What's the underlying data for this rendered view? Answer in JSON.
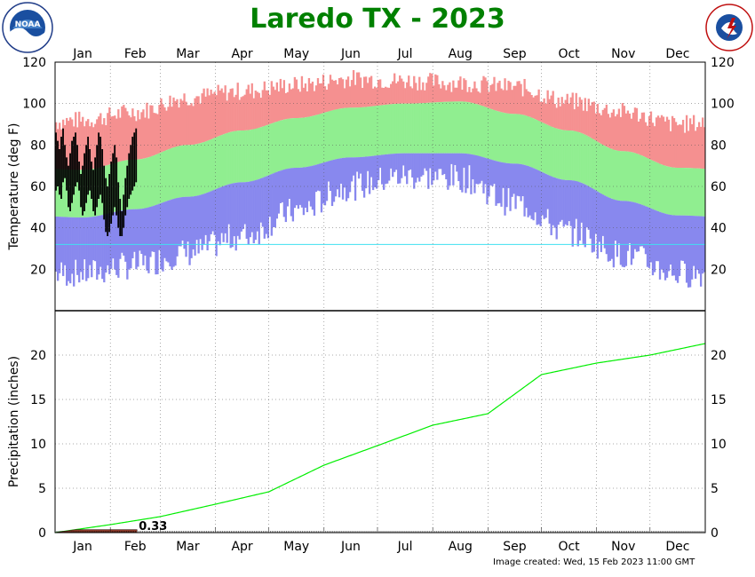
{
  "title": "Laredo TX - 2023",
  "footer": "Image created: Wed, 15 Feb 2023 11:00 GMT",
  "logos": {
    "left": "NOAA",
    "right": "NATIONAL WEATHER SERVICE"
  },
  "colors": {
    "title": "#008000",
    "record_high": "#f59090",
    "normal_band": "#90ee90",
    "record_low": "#8888ee",
    "observed": "#000000",
    "freeze_line": "#40e0f0",
    "normal_precip": "#00ee00",
    "observed_precip": "#8b3a2a"
  },
  "chart_data": [
    {
      "type": "bar",
      "title": "Laredo TX - 2023",
      "ylabel": "Temperature (deg F)",
      "ylim": [
        0,
        120
      ],
      "yticks": [
        20,
        40,
        60,
        80,
        100,
        120
      ],
      "months": [
        "Jan",
        "Feb",
        "Mar",
        "Apr",
        "May",
        "Jun",
        "Jul",
        "Aug",
        "Sep",
        "Oct",
        "Nov",
        "Dec"
      ],
      "freeze_line": 32,
      "normal_high_monthly": [
        68,
        73,
        80,
        87,
        93,
        98,
        100,
        101,
        95,
        87,
        77,
        69
      ],
      "normal_low_monthly": [
        45,
        49,
        55,
        62,
        69,
        74,
        76,
        76,
        71,
        63,
        53,
        46
      ],
      "record_high_monthly": [
        92,
        96,
        103,
        106,
        109,
        112,
        111,
        110,
        108,
        101,
        96,
        90
      ],
      "record_low_monthly": [
        18,
        22,
        28,
        36,
        48,
        60,
        65,
        64,
        52,
        38,
        27,
        18
      ],
      "observed_days": 46,
      "observed_high": [
        86,
        82,
        78,
        84,
        88,
        80,
        74,
        70,
        76,
        82,
        84,
        86,
        80,
        72,
        66,
        70,
        76,
        80,
        84,
        78,
        72,
        68,
        74,
        80,
        86,
        84,
        78,
        70,
        64,
        60,
        66,
        72,
        76,
        80,
        74,
        62,
        54,
        48,
        56,
        64,
        70,
        76,
        80,
        84,
        86,
        88
      ],
      "observed_low": [
        58,
        60,
        56,
        54,
        62,
        64,
        58,
        50,
        48,
        52,
        56,
        60,
        62,
        58,
        50,
        46,
        48,
        52,
        56,
        58,
        54,
        48,
        46,
        50,
        54,
        56,
        52,
        44,
        38,
        36,
        38,
        42,
        46,
        50,
        46,
        40,
        36,
        36,
        40,
        46,
        50,
        54,
        56,
        58,
        60,
        62
      ]
    },
    {
      "type": "line",
      "ylabel": "Precipitation (inches)",
      "ylim": [
        0,
        25
      ],
      "yticks": [
        0,
        5,
        10,
        15,
        20
      ],
      "months": [
        "Jan",
        "Feb",
        "Mar",
        "Apr",
        "May",
        "Jun",
        "Jul",
        "Aug",
        "Sep",
        "Oct",
        "Nov",
        "Dec"
      ],
      "normal_cumulative_month_end": [
        0.9,
        1.8,
        3.2,
        4.6,
        7.6,
        9.8,
        12.1,
        13.4,
        17.8,
        19.1,
        20.0,
        21.3
      ],
      "observed_cumulative_to_date": 0.33,
      "observed_label": "0.33"
    }
  ]
}
